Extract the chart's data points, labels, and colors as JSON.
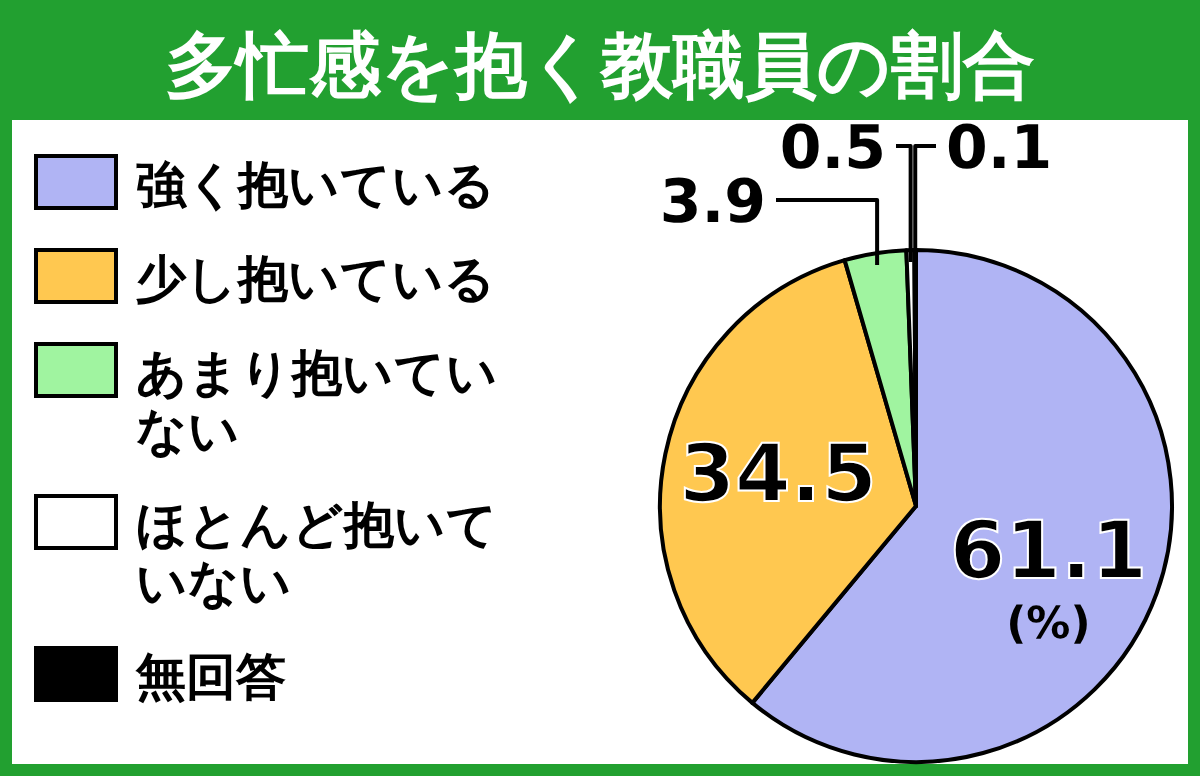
{
  "chart_data": {
    "type": "pie",
    "title": "多忙感を抱く教職員の割合",
    "categories": [
      "強く抱いている",
      "少し抱いている",
      "あまり抱いていない",
      "ほとんど抱いていない",
      "無回答"
    ],
    "values": [
      61.1,
      34.5,
      3.9,
      0.5,
      0.1
    ],
    "colors": [
      "#b0b4f4",
      "#ffc850",
      "#a0f4a0",
      "#ffffff",
      "#000000"
    ],
    "data_labels": true,
    "legend": "left",
    "annotations": [
      "(%)"
    ]
  }
}
